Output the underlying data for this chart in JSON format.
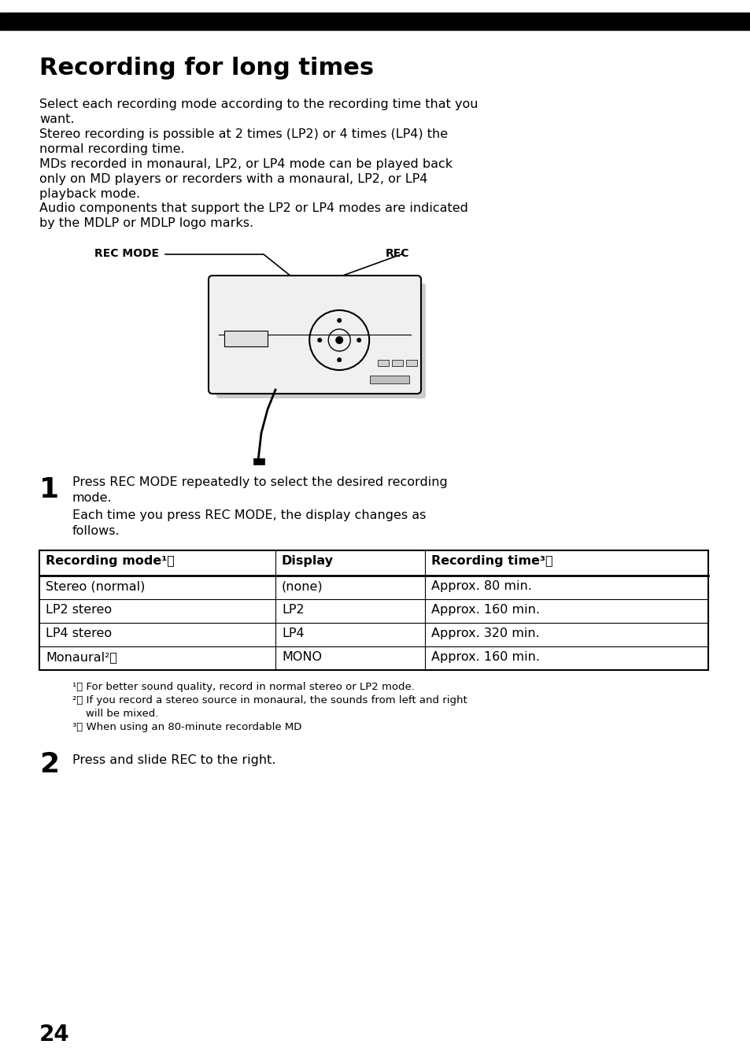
{
  "page_bg": "#ffffff",
  "title": "Recording for long times",
  "body_paragraphs": [
    "Select each recording mode according to the recording time that you\nwant.",
    "Stereo recording is possible at 2 times (LP2) or 4 times (LP4) the\nnormal recording time.",
    "MDs recorded in monaural, LP2, or LP4 mode can be played back\nonly on MD players or recorders with a monaural, LP2, or LP4\nplayback mode.",
    "Audio components that support the LP2 or LP4 modes are indicated\nby the MDLP or MDLP logo marks."
  ],
  "step1_text": "Press REC MODE repeatedly to select the desired recording\nmode.",
  "step1_sub": "Each time you press REC MODE, the display changes as\nfollows.",
  "table_headers": [
    "Recording mode¹⧸",
    "Display",
    "Recording time³⧸"
  ],
  "table_rows": [
    [
      "Stereo (normal)",
      "(none)",
      "Approx. 80 min."
    ],
    [
      "LP2 stereo",
      "LP2",
      "Approx. 160 min."
    ],
    [
      "LP4 stereo",
      "LP4",
      "Approx. 320 min."
    ],
    [
      "Monaural²⧸",
      "MONO",
      "Approx. 160 min."
    ]
  ],
  "footnotes": [
    "¹⧸ For better sound quality, record in normal stereo or LP2 mode.",
    "²⧸ If you record a stereo source in monaural, the sounds from left and right",
    "    will be mixed.",
    "³⧸ When using an 80-minute recordable MD"
  ],
  "step2_text": "Press and slide REC to the right.",
  "page_num": "24"
}
